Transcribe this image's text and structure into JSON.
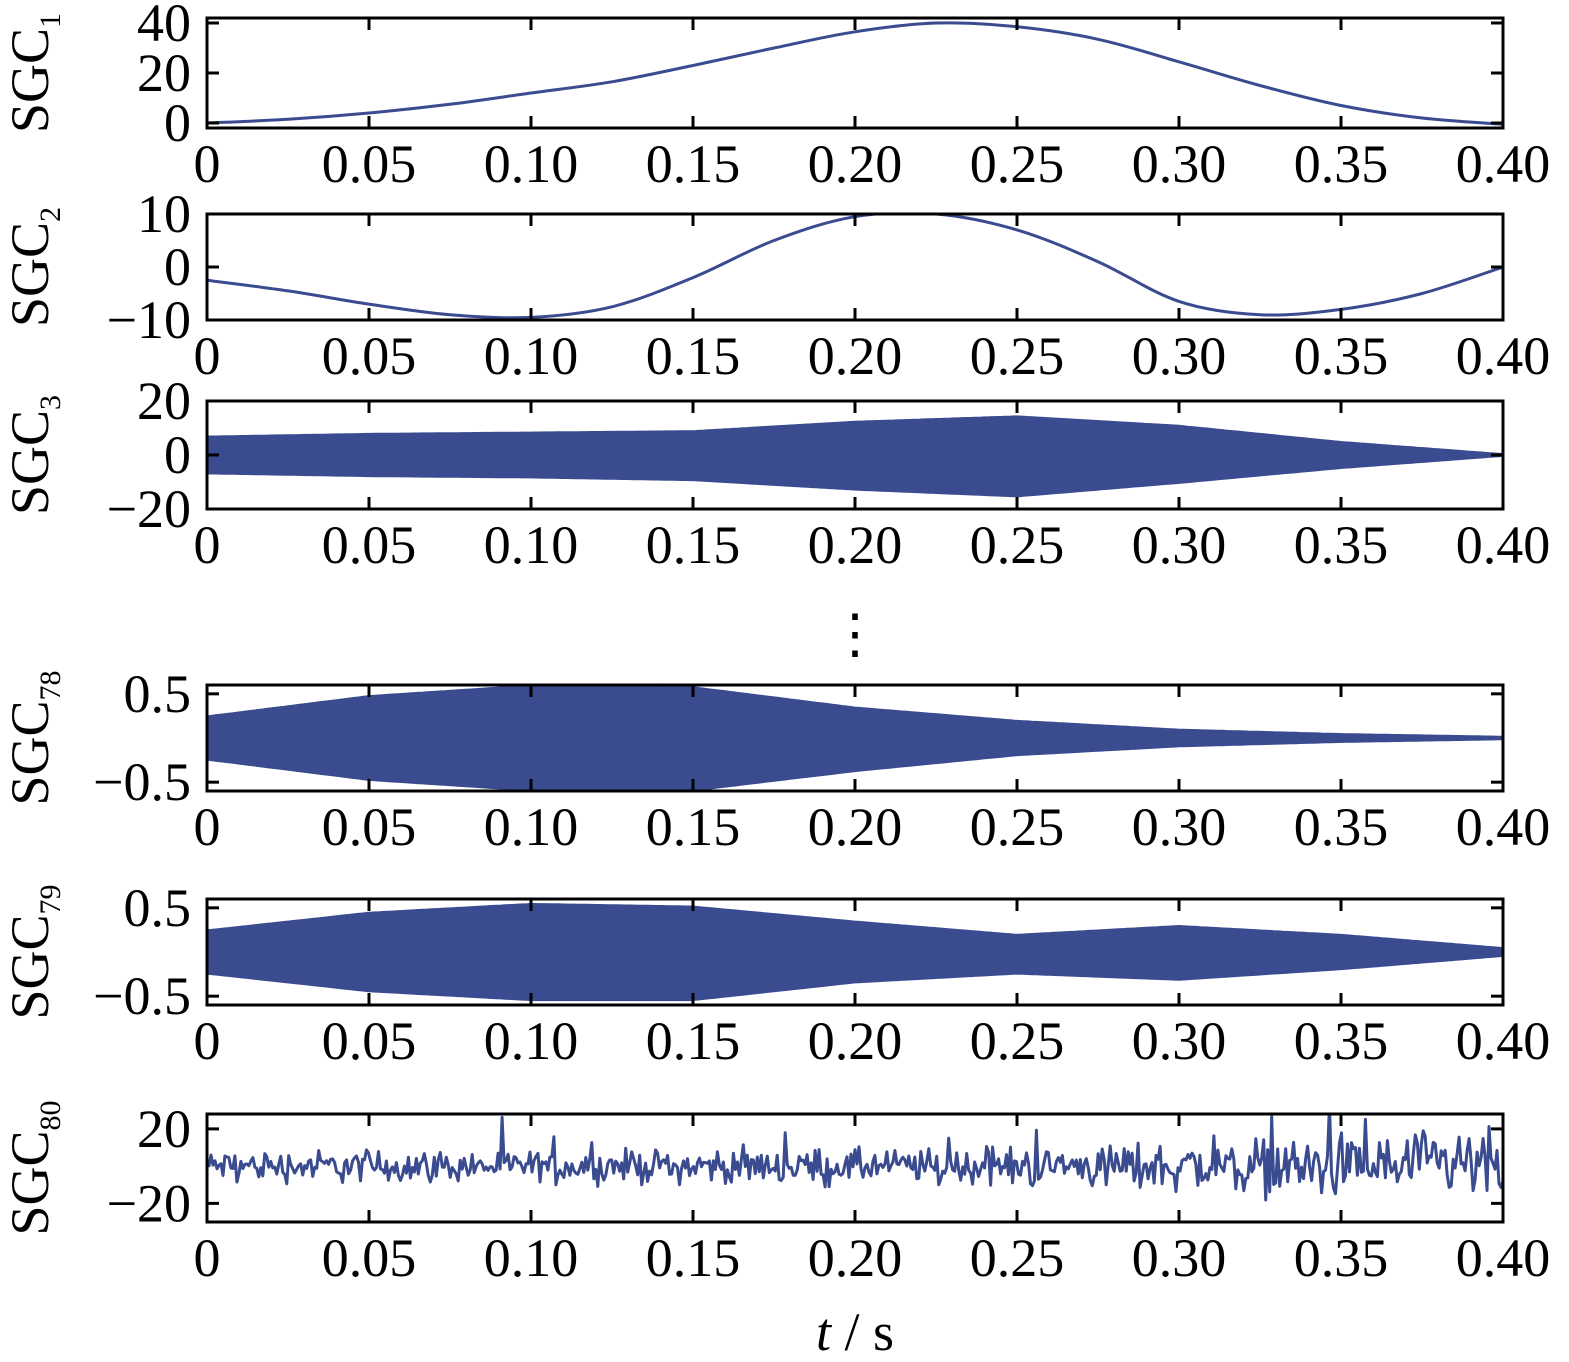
{
  "chart_data": {
    "type": "line",
    "xlabel_italic": "t",
    "xlabel_rest": " / s",
    "ellipsis": "⋮",
    "x_ticks": [
      0,
      0.05,
      0.1,
      0.15,
      0.2,
      0.25,
      0.3,
      0.35,
      0.4
    ],
    "x_tick_labels": [
      "0",
      "0.05",
      "0.10",
      "0.15",
      "0.20",
      "0.25",
      "0.30",
      "0.35",
      "0.40"
    ],
    "xlim": [
      0,
      0.4
    ],
    "line_color": "#3a4b90",
    "panels": [
      {
        "label_main": "SGC",
        "label_sub": "1",
        "ylim": [
          -2,
          42
        ],
        "y_ticks": [
          0,
          20,
          40
        ],
        "y_tick_labels": [
          "0",
          "20",
          "40"
        ],
        "kind": "smooth",
        "t": [
          0,
          0.025,
          0.05,
          0.075,
          0.1,
          0.125,
          0.15,
          0.175,
          0.2,
          0.225,
          0.25,
          0.275,
          0.3,
          0.325,
          0.35,
          0.375,
          0.4
        ],
        "values": [
          0,
          1.5,
          4,
          7.5,
          12,
          16.5,
          23,
          30,
          36.5,
          40,
          38.5,
          33.5,
          24.5,
          15,
          7,
          2,
          -0.5
        ]
      },
      {
        "label_main": "SGC",
        "label_sub": "2",
        "ylim": [
          -10,
          10
        ],
        "y_ticks": [
          -10,
          0,
          10
        ],
        "y_tick_labels": [
          "−10",
          "0",
          "10"
        ],
        "kind": "smooth",
        "t": [
          0,
          0.025,
          0.05,
          0.075,
          0.1,
          0.125,
          0.15,
          0.175,
          0.2,
          0.225,
          0.25,
          0.275,
          0.3,
          0.325,
          0.35,
          0.375,
          0.4
        ],
        "values": [
          -2.5,
          -4.5,
          -7,
          -9,
          -9.5,
          -7.5,
          -2,
          5,
          9.5,
          10,
          7,
          1,
          -6.5,
          -9,
          -8,
          -5,
          0
        ]
      },
      {
        "label_main": "SGC",
        "label_sub": "3",
        "ylim": [
          -20,
          20
        ],
        "y_ticks": [
          -20,
          0,
          20
        ],
        "y_tick_labels": [
          "−20",
          "0",
          "20"
        ],
        "kind": "band",
        "t": [
          0,
          0.05,
          0.1,
          0.15,
          0.2,
          0.25,
          0.3,
          0.35,
          0.4
        ],
        "upper": [
          7,
          8,
          8.5,
          9,
          12.5,
          14.5,
          11,
          5,
          0.5
        ],
        "lower": [
          -7,
          -8,
          -8.5,
          -9.5,
          -13,
          -15.5,
          -10.5,
          -5,
          -0.5
        ]
      },
      {
        "label_main": "SGC",
        "label_sub": "78",
        "ylim": [
          -0.6,
          0.6
        ],
        "y_ticks": [
          -0.5,
          0.5
        ],
        "y_tick_labels": [
          "−0.5",
          "0.5"
        ],
        "kind": "band",
        "t": [
          0,
          0.05,
          0.1,
          0.15,
          0.2,
          0.25,
          0.3,
          0.35,
          0.4
        ],
        "upper": [
          0.25,
          0.48,
          0.6,
          0.58,
          0.35,
          0.2,
          0.1,
          0.05,
          0.02
        ],
        "lower": [
          -0.25,
          -0.48,
          -0.6,
          -0.6,
          -0.38,
          -0.2,
          -0.1,
          -0.05,
          -0.02
        ]
      },
      {
        "label_main": "SGC",
        "label_sub": "79",
        "ylim": [
          -0.6,
          0.6
        ],
        "y_ticks": [
          -0.5,
          0.5
        ],
        "y_tick_labels": [
          "−0.5",
          "0.5"
        ],
        "kind": "band",
        "t": [
          0,
          0.05,
          0.1,
          0.15,
          0.2,
          0.25,
          0.3,
          0.35,
          0.4
        ],
        "upper": [
          0.25,
          0.45,
          0.55,
          0.52,
          0.35,
          0.2,
          0.3,
          0.2,
          0.05
        ],
        "lower": [
          -0.25,
          -0.45,
          -0.55,
          -0.55,
          -0.35,
          -0.25,
          -0.32,
          -0.2,
          -0.05
        ]
      },
      {
        "label_main": "SGC",
        "label_sub": "80",
        "ylim": [
          -30,
          28
        ],
        "y_ticks": [
          -20,
          20
        ],
        "y_tick_labels": [
          "−20",
          "20"
        ],
        "kind": "noise",
        "t": [
          0,
          0.05,
          0.1,
          0.15,
          0.2,
          0.25,
          0.3,
          0.35,
          0.4
        ],
        "amplitude": [
          7,
          8,
          7,
          8,
          8,
          9,
          12,
          15,
          17
        ]
      }
    ]
  }
}
